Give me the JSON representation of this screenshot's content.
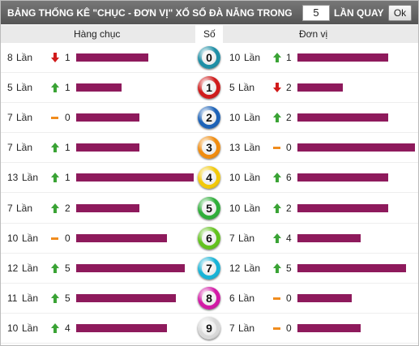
{
  "header": {
    "title": "BẢNG THỐNG KÊ \"CHỤC - ĐƠN VỊ\" XỔ SỐ ĐÀ NẴNG TRONG",
    "input": 5,
    "label": "LẦN QUAY",
    "button": "Ok"
  },
  "columns": {
    "tens": "Hàng chục",
    "digit": "Số",
    "units": "Đơn vị"
  },
  "unit": "Lần",
  "bar_color": "#8e1a5c",
  "rows": [
    {
      "digit": 0,
      "color": "#1f8fa6",
      "tens": {
        "count": 8,
        "trend": "down",
        "change": 1
      },
      "units": {
        "count": 10,
        "trend": "up",
        "change": 1
      }
    },
    {
      "digit": 1,
      "color": "#d01c1c",
      "tens": {
        "count": 5,
        "trend": "up",
        "change": 1
      },
      "units": {
        "count": 5,
        "trend": "down",
        "change": 2
      }
    },
    {
      "digit": 2,
      "color": "#1e63b8",
      "tens": {
        "count": 7,
        "trend": "flat",
        "change": 0
      },
      "units": {
        "count": 10,
        "trend": "up",
        "change": 2
      }
    },
    {
      "digit": 3,
      "color": "#f08c10",
      "tens": {
        "count": 7,
        "trend": "up",
        "change": 1
      },
      "units": {
        "count": 13,
        "trend": "flat",
        "change": 0
      }
    },
    {
      "digit": 4,
      "color": "#f2c90a",
      "tens": {
        "count": 13,
        "trend": "up",
        "change": 1
      },
      "units": {
        "count": 10,
        "trend": "up",
        "change": 6
      }
    },
    {
      "digit": 5,
      "color": "#2fae3a",
      "tens": {
        "count": 7,
        "trend": "up",
        "change": 2
      },
      "units": {
        "count": 10,
        "trend": "up",
        "change": 2
      }
    },
    {
      "digit": 6,
      "color": "#62c21e",
      "tens": {
        "count": 10,
        "trend": "flat",
        "change": 0
      },
      "units": {
        "count": 7,
        "trend": "up",
        "change": 4
      }
    },
    {
      "digit": 7,
      "color": "#19b3d6",
      "tens": {
        "count": 12,
        "trend": "up",
        "change": 5
      },
      "units": {
        "count": 12,
        "trend": "up",
        "change": 5
      }
    },
    {
      "digit": 8,
      "color": "#d21aa6",
      "tens": {
        "count": 11,
        "trend": "up",
        "change": 5
      },
      "units": {
        "count": 6,
        "trend": "flat",
        "change": 0
      }
    },
    {
      "digit": 9,
      "color": "#d8d8d8",
      "tens": {
        "count": 10,
        "trend": "up",
        "change": 4
      },
      "units": {
        "count": 7,
        "trend": "flat",
        "change": 0
      }
    }
  ]
}
